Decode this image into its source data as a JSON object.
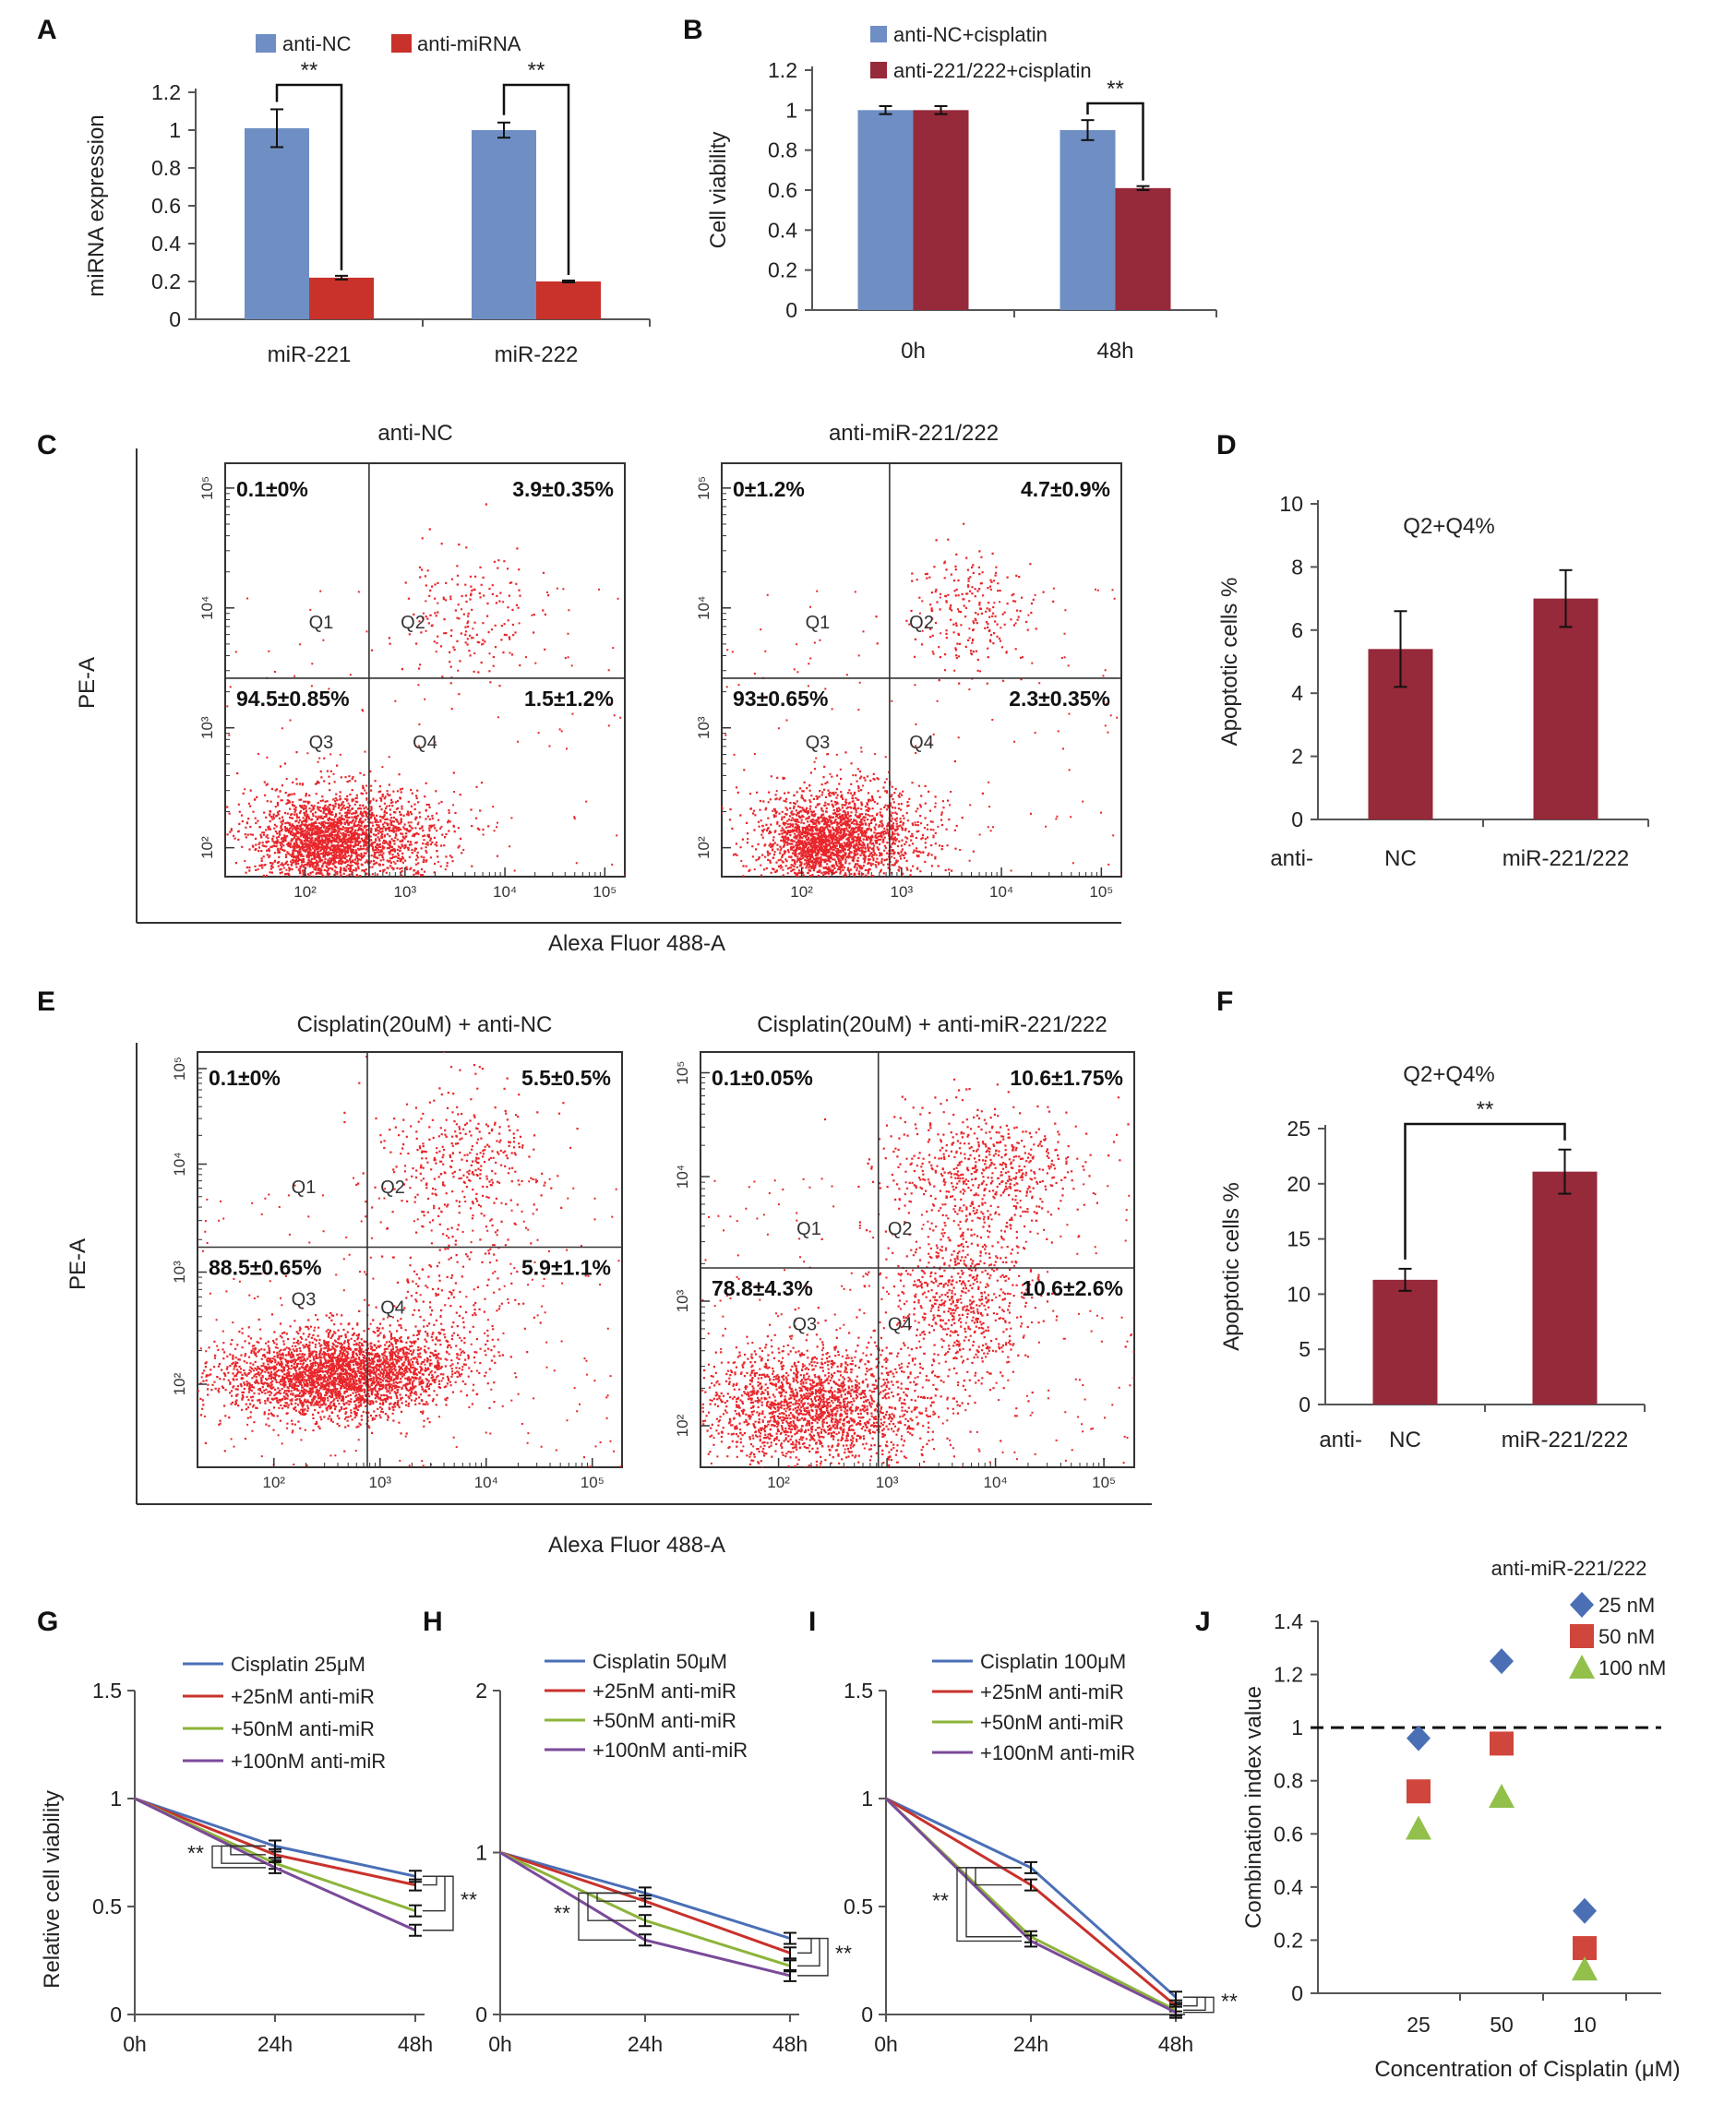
{
  "panels": {
    "A": "A",
    "B": "B",
    "C": "C",
    "D": "D",
    "E": "E",
    "F": "F",
    "G": "G",
    "H": "H",
    "I": "I",
    "J": "J"
  },
  "sig": "**",
  "chart_data": [
    {
      "id": "A",
      "type": "bar",
      "categories": [
        "miR-221",
        "miR-222"
      ],
      "series": [
        {
          "name": "anti-NC",
          "color": "#6f8ec4",
          "values": [
            1.01,
            1.0
          ],
          "errors": [
            0.1,
            0.04
          ]
        },
        {
          "name": "anti-miRNA",
          "color": "#c8322b",
          "values": [
            0.22,
            0.2
          ],
          "errors": [
            0.01,
            0.005
          ]
        }
      ],
      "ylabel": "miRNA expression",
      "ylim": [
        0,
        1.2
      ],
      "yticks": [
        "0",
        "0.2",
        "0.4",
        "0.6",
        "0.8",
        "1",
        "1.2"
      ]
    },
    {
      "id": "B",
      "type": "bar",
      "categories": [
        "0h",
        "48h"
      ],
      "series": [
        {
          "name": "anti-NC+cisplatin",
          "color": "#6f8ec4",
          "values": [
            1.0,
            0.9
          ],
          "errors": [
            0.02,
            0.05
          ]
        },
        {
          "name": "anti-221/222+cisplatin",
          "color": "#96293a",
          "values": [
            1.0,
            0.61
          ],
          "errors": [
            0.02,
            0.01
          ]
        }
      ],
      "ylabel": "Cell viability",
      "ylim": [
        0,
        1.2
      ],
      "yticks": [
        "0",
        "0.2",
        "0.4",
        "0.6",
        "0.8",
        "1",
        "1.2"
      ]
    },
    {
      "id": "D",
      "type": "bar",
      "title": "Q2+Q4%",
      "prefix": "anti-",
      "categories": [
        "NC",
        "miR-221/222"
      ],
      "series": [
        {
          "name": "Apoptotic",
          "color": "#96293a",
          "values": [
            5.4,
            7.0
          ],
          "errors": [
            1.2,
            0.9
          ]
        }
      ],
      "ylabel": "Apoptotic cells %",
      "ylim": [
        0,
        10
      ],
      "yticks": [
        "0",
        "2",
        "4",
        "6",
        "8",
        "10"
      ]
    },
    {
      "id": "F",
      "type": "bar",
      "title": "Q2+Q4%",
      "prefix": "anti-",
      "categories": [
        "NC",
        "miR-221/222"
      ],
      "series": [
        {
          "name": "Apoptotic",
          "color": "#96293a",
          "values": [
            11.3,
            21.1
          ],
          "errors": [
            1.0,
            2.0
          ]
        }
      ],
      "ylabel": "Apoptotic cells %",
      "ylim": [
        0,
        25
      ],
      "yticks": [
        "0",
        "5",
        "10",
        "15",
        "20",
        "25"
      ]
    },
    {
      "id": "G",
      "type": "line",
      "x": [
        "0h",
        "24h",
        "48h"
      ],
      "ylabel": "Relative cell viability",
      "ylim": [
        0,
        1.5
      ],
      "yticks": [
        "0",
        "0.5",
        "1",
        "1.5"
      ],
      "series": [
        {
          "name": "Cisplatin 25μM",
          "color": "#4a6fb5",
          "values": [
            1,
            0.78,
            0.64
          ]
        },
        {
          "name": "+25nM anti-miR",
          "color": "#c8322b",
          "values": [
            1,
            0.74,
            0.6
          ]
        },
        {
          "name": "+50nM anti-miR",
          "color": "#8db43a",
          "values": [
            1,
            0.7,
            0.48
          ]
        },
        {
          "name": "+100nM anti-miR",
          "color": "#7a4a9a",
          "values": [
            1,
            0.68,
            0.39
          ]
        }
      ]
    },
    {
      "id": "H",
      "type": "line",
      "x": [
        "0h",
        "24h",
        "48h"
      ],
      "ylabel": "",
      "ylim": [
        0,
        2
      ],
      "yticks": [
        "0",
        "1",
        "2"
      ],
      "series": [
        {
          "name": "Cisplatin 50μM",
          "color": "#4a6fb5",
          "values": [
            1,
            0.75,
            0.47
          ]
        },
        {
          "name": "+25nM anti-miR",
          "color": "#c8322b",
          "values": [
            1,
            0.7,
            0.38
          ]
        },
        {
          "name": "+50nM anti-miR",
          "color": "#8db43a",
          "values": [
            1,
            0.58,
            0.3
          ]
        },
        {
          "name": "+100nM anti-miR",
          "color": "#7a4a9a",
          "values": [
            1,
            0.46,
            0.24
          ]
        }
      ]
    },
    {
      "id": "I",
      "type": "line",
      "x": [
        "0h",
        "24h",
        "48h"
      ],
      "ylabel": "",
      "ylim": [
        0,
        1.5
      ],
      "yticks": [
        "0",
        "0.5",
        "1",
        "1.5"
      ],
      "series": [
        {
          "name": "Cisplatin 100μM",
          "color": "#4a6fb5",
          "values": [
            1,
            0.68,
            0.08
          ]
        },
        {
          "name": "+25nM anti-miR",
          "color": "#c8322b",
          "values": [
            1,
            0.6,
            0.04
          ]
        },
        {
          "name": "+50nM anti-miR",
          "color": "#8db43a",
          "values": [
            1,
            0.36,
            0.02
          ]
        },
        {
          "name": "+100nM anti-miR",
          "color": "#7a4a9a",
          "values": [
            1,
            0.34,
            0.01
          ]
        }
      ]
    },
    {
      "id": "J",
      "type": "scatter",
      "title": "anti-miR-221/222",
      "categories": [
        "25",
        "50",
        "10"
      ],
      "ylabel": "Combination index value",
      "xlabel": "Concentration of Cisplatin (μM)",
      "ylim": [
        0,
        1.4
      ],
      "yticks": [
        "0",
        "0.2",
        "0.4",
        "0.6",
        "0.8",
        "1",
        "1.2",
        "1.4"
      ],
      "refline": 1,
      "series": [
        {
          "name": "25 nM",
          "color": "#4a6fb5",
          "marker": "diamond",
          "values": [
            0.96,
            1.25,
            0.31
          ]
        },
        {
          "name": "50 nM",
          "color": "#d0463c",
          "marker": "square",
          "values": [
            0.76,
            0.94,
            0.17
          ]
        },
        {
          "name": "100 nM",
          "color": "#92c04a",
          "marker": "triangle",
          "values": [
            0.62,
            0.74,
            0.09
          ]
        }
      ]
    },
    {
      "id": "C",
      "type": "scatter",
      "titles": [
        "anti-NC",
        "anti-miR-221/222"
      ],
      "ylabel": "PE-A",
      "xlabel": "Alexa Fluor 488-A",
      "quadrants": [
        "Q1",
        "Q2",
        "Q3",
        "Q4"
      ],
      "plots": [
        {
          "q1": "0.1±0%",
          "q2": "3.9±0.35%",
          "q3": "94.5±0.85%",
          "q4": "1.5±1.2%"
        },
        {
          "q1": "0±1.2%",
          "q2": "4.7±0.9%",
          "q3": "93±0.65%",
          "q4": "2.3±0.35%"
        }
      ]
    },
    {
      "id": "E",
      "type": "scatter",
      "titles": [
        "Cisplatin(20uM) + anti-NC",
        "Cisplatin(20uM) + anti-miR-221/222"
      ],
      "ylabel": "PE-A",
      "xlabel": "Alexa Fluor 488-A",
      "quadrants": [
        "Q1",
        "Q2",
        "Q3",
        "Q4"
      ],
      "plots": [
        {
          "q1": "0.1±0%",
          "q2": "5.5±0.5%",
          "q3": "88.5±0.65%",
          "q4": "5.9±1.1%"
        },
        {
          "q1": "0.1±0.05%",
          "q2": "10.6±1.75%",
          "q3": "78.8±4.3%",
          "q4": "10.6±2.6%"
        }
      ]
    }
  ]
}
